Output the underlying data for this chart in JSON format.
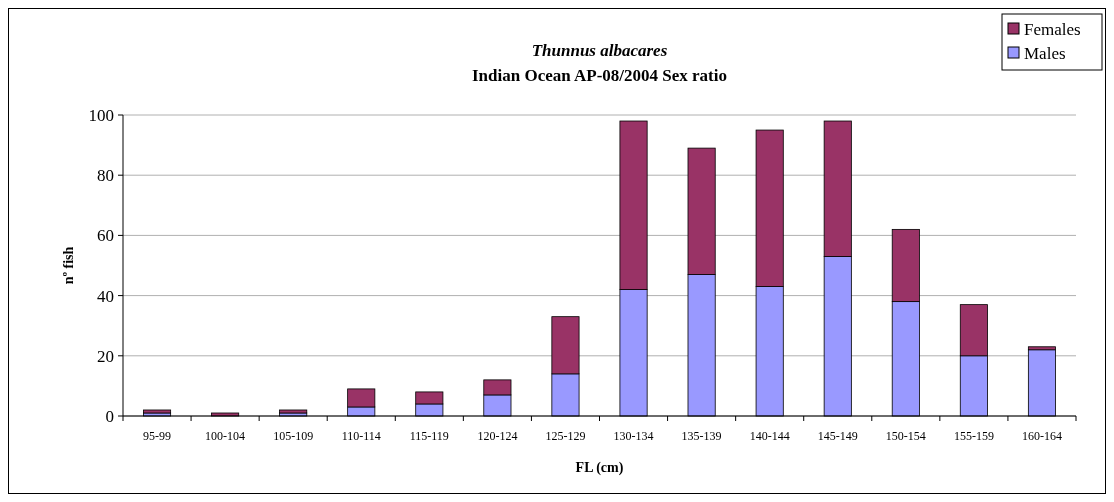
{
  "chart_data": {
    "type": "bar",
    "title": "Thunnus albacares",
    "subtitle": "Indian Ocean AP-08/2004 Sex ratio",
    "xlabel": "FL (cm)",
    "ylabel": "nº fish",
    "categories": [
      "95-99",
      "100-104",
      "105-109",
      "110-114",
      "115-119",
      "120-124",
      "125-129",
      "130-134",
      "135-139",
      "140-144",
      "145-149",
      "150-154",
      "155-159",
      "160-164"
    ],
    "series": [
      {
        "name": "Males",
        "color": "#9999ff",
        "values": [
          1,
          0,
          1,
          3,
          4,
          7,
          14,
          42,
          47,
          43,
          53,
          38,
          20,
          22
        ]
      },
      {
        "name": "Females",
        "color": "#993366",
        "values": [
          1,
          1,
          1,
          6,
          4,
          5,
          19,
          56,
          42,
          52,
          45,
          24,
          17,
          1
        ]
      }
    ],
    "stacked": true,
    "ylim": [
      0,
      100
    ],
    "yticks": [
      0,
      20,
      40,
      60,
      80,
      100
    ],
    "grid": "y",
    "legend": "top right"
  }
}
